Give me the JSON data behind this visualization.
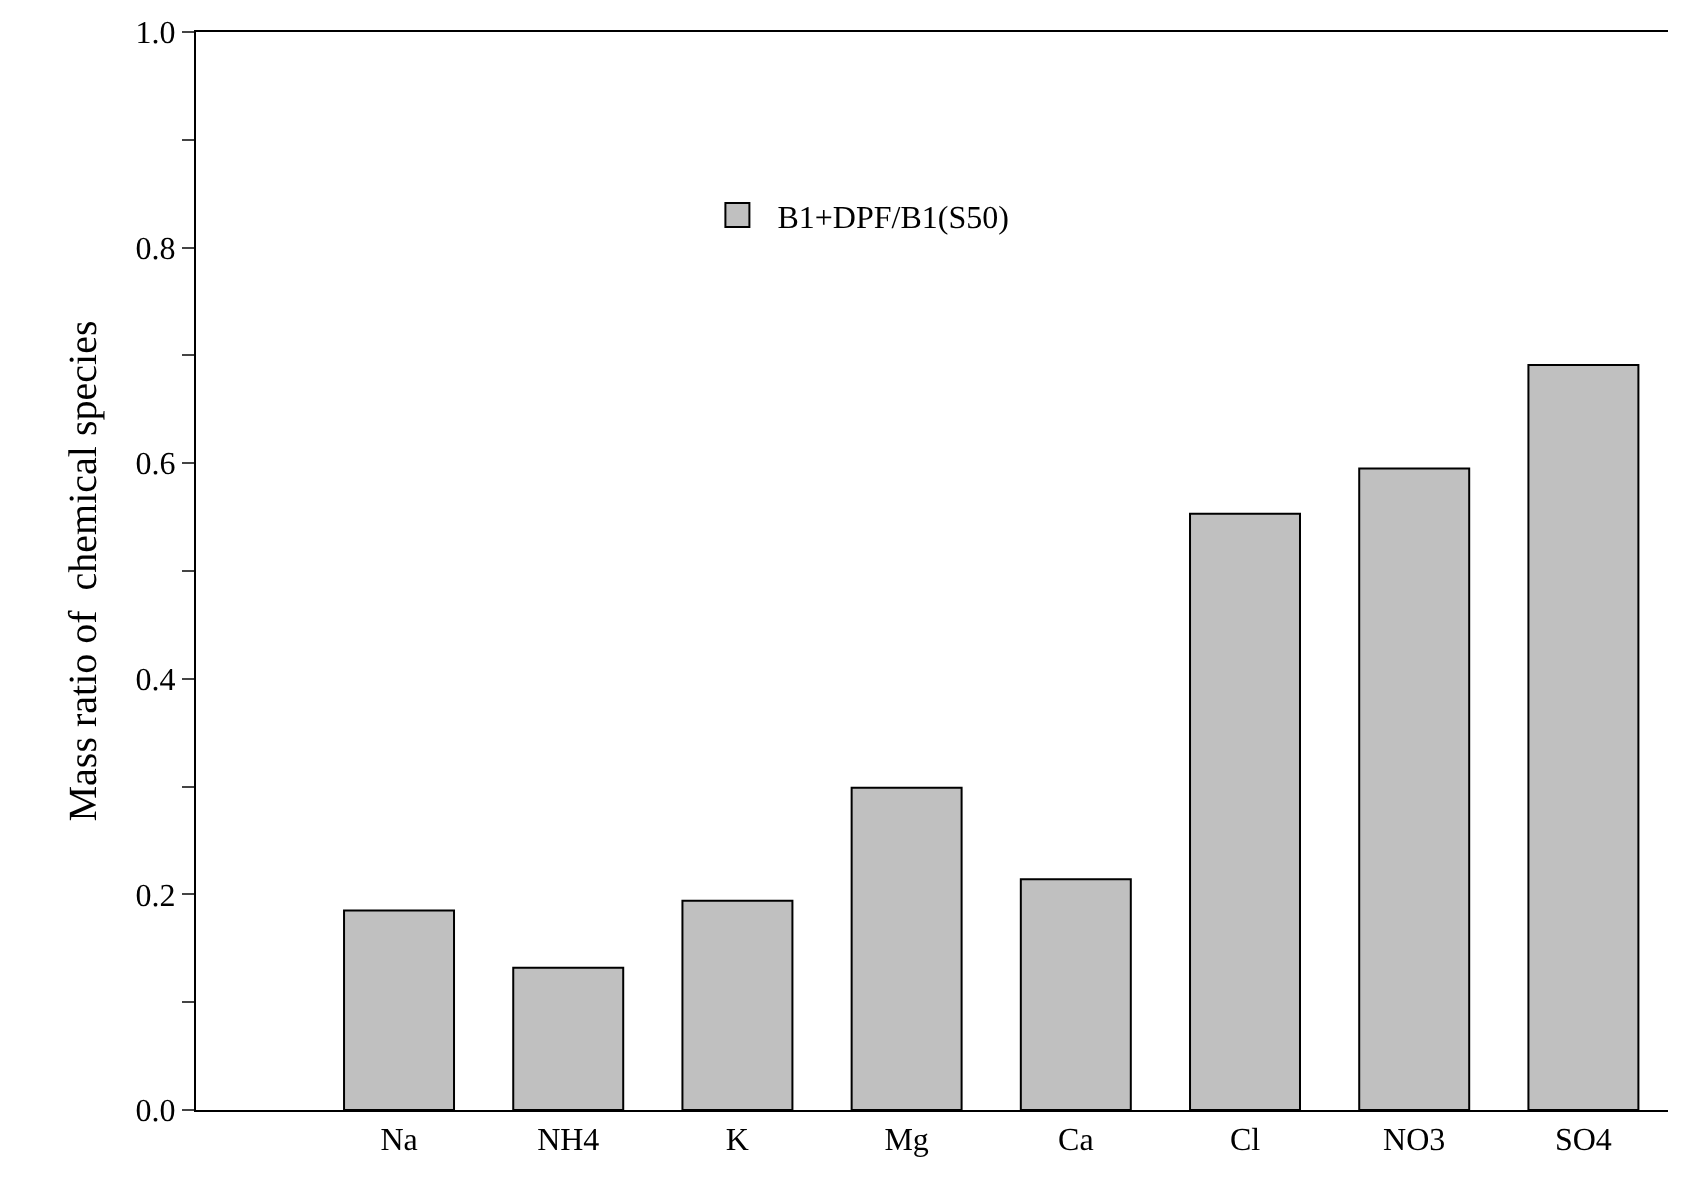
{
  "chart_data": {
    "type": "bar",
    "ylabel": "Mass ratio of  chemical species",
    "categories": [
      "Na",
      "NH4",
      "K",
      "Mg",
      "Ca",
      "Cl",
      "NO3",
      "SO4"
    ],
    "series": [
      {
        "name": "B1+DPF/B1(S50)",
        "color": "#c0c0c0",
        "values": [
          0.185,
          0.132,
          0.194,
          0.299,
          0.214,
          0.553,
          0.595,
          0.691
        ]
      }
    ],
    "ylim": [
      0,
      1
    ],
    "yticks": [
      {
        "value": 0,
        "label": "0.0"
      },
      {
        "value": 0.1,
        "label": null
      },
      0.2,
      {
        "value": 0.3,
        "label": null
      },
      0.4,
      {
        "value": 0.5,
        "label": null
      },
      0.6,
      {
        "value": 0.7,
        "label": null
      },
      0.8,
      {
        "value": 0.9,
        "label": null
      },
      {
        "value": 1,
        "label": "1.0"
      }
    ],
    "grid": false,
    "legend": "top"
  }
}
